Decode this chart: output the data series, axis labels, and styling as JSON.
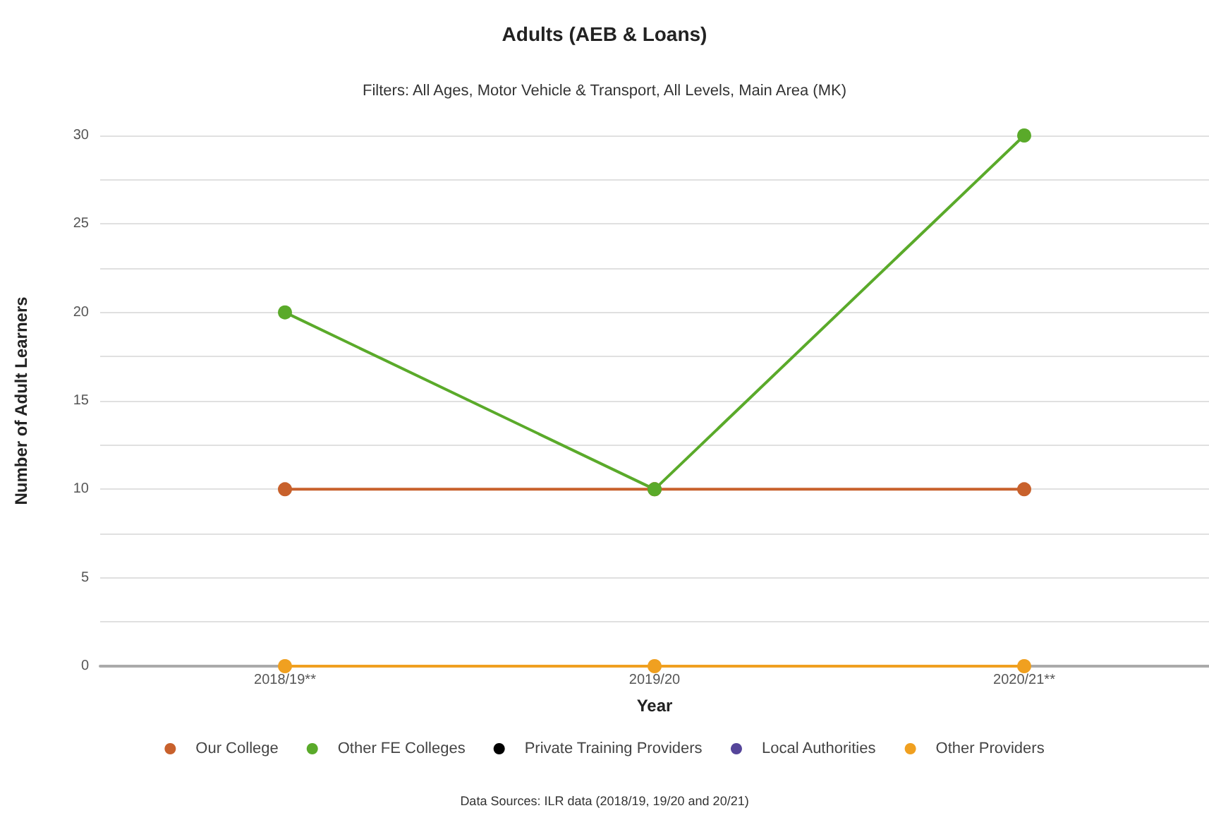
{
  "chart_data": {
    "type": "line",
    "title": "Adults (AEB & Loans)",
    "subtitle": "Filters: All Ages, Motor Vehicle & Transport, All Levels, Main Area (MK)",
    "xlabel": "Year",
    "ylabel": "Number of Adult Learners",
    "annotations": [
      "Data Sources: ILR data (2018/19, 19/20 and 20/21)"
    ],
    "categories": [
      "2018/19**",
      "2019/20",
      "2020/21**"
    ],
    "series": [
      {
        "name": "Our College",
        "color": "#c8612c",
        "values": [
          10,
          10,
          10
        ]
      },
      {
        "name": "Other FE Colleges",
        "color": "#5aaa2a",
        "values": [
          20,
          10,
          30
        ]
      },
      {
        "name": "Private Training Providers",
        "color": "#000000",
        "values": [
          null,
          null,
          null
        ]
      },
      {
        "name": "Local Authorities",
        "color": "#55459a",
        "values": [
          null,
          null,
          null
        ]
      },
      {
        "name": "Other Providers",
        "color": "#f0a020",
        "values": [
          0,
          0,
          0
        ]
      }
    ],
    "ylim": [
      0,
      30
    ],
    "yticks": [
      0,
      {
        "value": 2.5,
        "label": null
      },
      5,
      {
        "value": 7.5,
        "label": null
      },
      10,
      {
        "value": 12.5,
        "label": null
      },
      15,
      {
        "value": 17.5,
        "label": null
      },
      20,
      {
        "value": 22.5,
        "label": null
      },
      25,
      {
        "value": 27.5,
        "label": null
      },
      30
    ],
    "grid": "y",
    "legend": "bottom",
    "marker": "circle",
    "line_style": "solid"
  }
}
